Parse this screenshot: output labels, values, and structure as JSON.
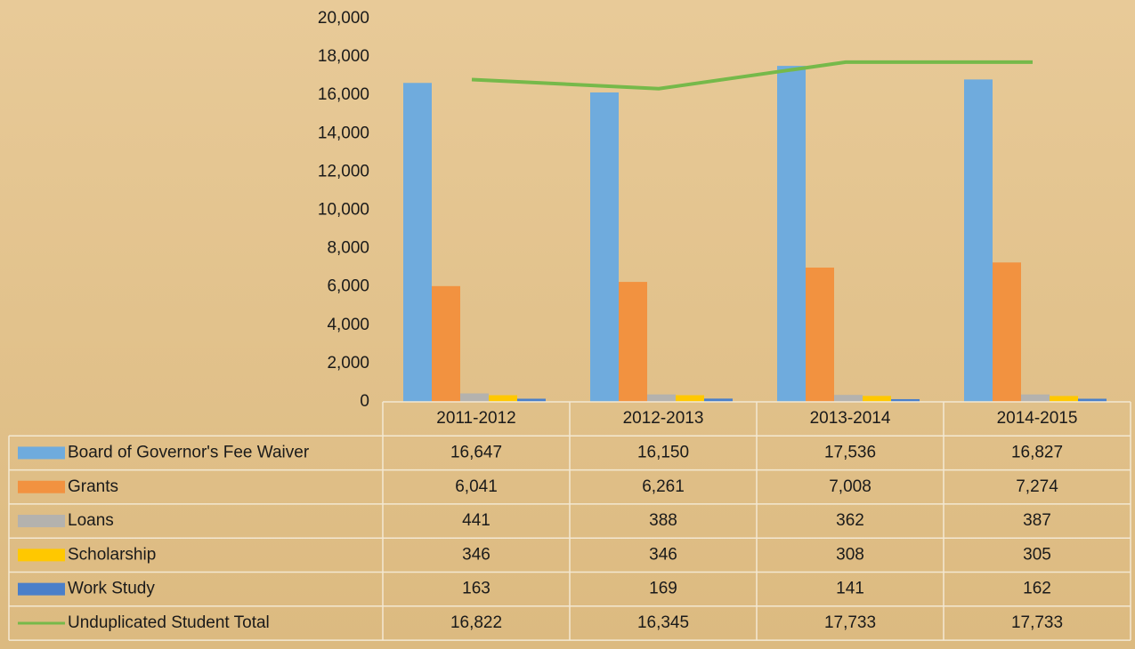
{
  "chart_data": {
    "type": "bar",
    "categories": [
      "2011-2012",
      "2012-2013",
      "2013-2014",
      "2014-2015"
    ],
    "series": [
      {
        "name": "Board of Governor's Fee Waiver",
        "color": "#6fabdd",
        "values": [
          16647,
          16150,
          17536,
          16827
        ],
        "value_labels": [
          "16,647",
          "16,150",
          "17,536",
          "16,827"
        ]
      },
      {
        "name": "Grants",
        "color": "#f29240",
        "values": [
          6041,
          6261,
          7008,
          7274
        ],
        "value_labels": [
          "6,041",
          "6,261",
          "7,008",
          "7,274"
        ]
      },
      {
        "name": "Loans",
        "color": "#b4b2ae",
        "values": [
          441,
          388,
          362,
          387
        ],
        "value_labels": [
          "441",
          "388",
          "362",
          "387"
        ]
      },
      {
        "name": "Scholarship",
        "color": "#ffc800",
        "values": [
          346,
          346,
          308,
          305
        ],
        "value_labels": [
          "346",
          "346",
          "308",
          "305"
        ]
      },
      {
        "name": "Work Study",
        "color": "#4a7fc9",
        "values": [
          163,
          169,
          141,
          162
        ],
        "value_labels": [
          "163",
          "169",
          "141",
          "162"
        ]
      },
      {
        "name": "Unduplicated Student Total",
        "color": "#76b94a",
        "type": "line",
        "values": [
          16822,
          16345,
          17733,
          17733
        ],
        "value_labels": [
          "16,822",
          "16,345",
          "17,733",
          "17,733"
        ]
      }
    ],
    "ylim": [
      0,
      20000
    ],
    "yticks": [
      0,
      {
        "value": 2000,
        "label": "2,000"
      },
      {
        "value": 4000,
        "label": "4,000"
      },
      {
        "value": 6000,
        "label": "6,000"
      },
      {
        "value": 8000,
        "label": "8,000"
      },
      {
        "value": 10000,
        "label": "10,000"
      },
      {
        "value": 12000,
        "label": "12,000"
      },
      {
        "value": 14000,
        "label": "14,000"
      },
      {
        "value": 16000,
        "label": "16,000"
      },
      {
        "value": 18000,
        "label": "18,000"
      },
      {
        "value": 20000,
        "label": "20,000"
      }
    ]
  }
}
